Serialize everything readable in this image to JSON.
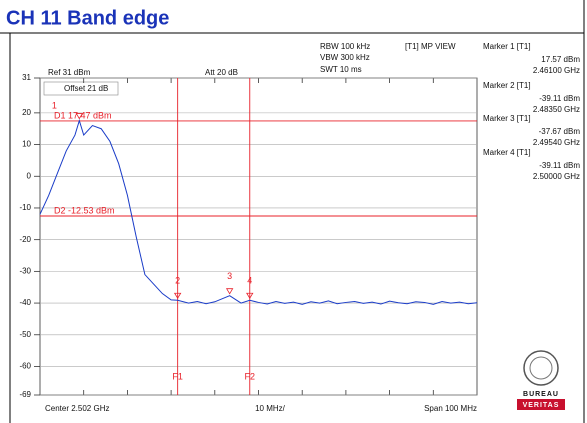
{
  "chart_data": {
    "type": "line",
    "title": "CH 11 Band edge",
    "ref_label": "Ref 31 dBm",
    "att_label": "Att 20 dB",
    "offset_label": "Offset 21 dB",
    "settings": [
      "RBW 100 kHz",
      "VBW 300 kHz",
      "SWT 10 ms"
    ],
    "view_label": "[T1] MP VIEW",
    "x_labels": {
      "center": "Center 2.502 GHz",
      "div": "10 MHz/",
      "span": "Span 100 MHz"
    },
    "xlim": [
      2.452,
      2.552
    ],
    "ylim": [
      -69,
      31
    ],
    "yticks": [
      31,
      20,
      10,
      0,
      -10,
      -20,
      -30,
      -40,
      -50,
      -60,
      -69
    ],
    "grid": true,
    "color": "#1a3cc8",
    "line_color": "#e8212a",
    "x": [
      2.452,
      2.454,
      2.456,
      2.458,
      2.46,
      2.461,
      2.462,
      2.464,
      2.466,
      2.468,
      2.47,
      2.472,
      2.474,
      2.476,
      2.478,
      2.48,
      2.482,
      2.4835,
      2.486,
      2.488,
      2.49,
      2.492,
      2.4954,
      2.498,
      2.5,
      2.502,
      2.504,
      2.506,
      2.508,
      2.51,
      2.512,
      2.514,
      2.516,
      2.518,
      2.52,
      2.522,
      2.524,
      2.526,
      2.528,
      2.53,
      2.532,
      2.534,
      2.536,
      2.538,
      2.54,
      2.542,
      2.544,
      2.546,
      2.548,
      2.55,
      2.552
    ],
    "values": [
      -12,
      -6,
      1,
      8,
      13,
      17.57,
      13,
      16,
      15,
      11,
      4,
      -6,
      -19,
      -31,
      -34,
      -37,
      -39,
      -39.11,
      -40,
      -39.5,
      -40.2,
      -39.6,
      -37.67,
      -40,
      -39.11,
      -39.8,
      -40.3,
      -39.5,
      -40.1,
      -39.7,
      -40.4,
      -39.6,
      -40,
      -39.3,
      -40.2,
      -39.8,
      -39.5,
      -40.1,
      -39.7,
      -40.3,
      -39.4,
      -39.9,
      -40.2,
      -39.6,
      -39.8,
      -40.4,
      -39.5,
      -40,
      -39.7,
      -40.2,
      -39.9
    ],
    "display_lines": [
      {
        "label": "D1 17.47 dBm",
        "value": 17.47
      },
      {
        "label": "D2 -12.53 dBm",
        "value": -12.53
      }
    ],
    "freq_lines": [
      {
        "label": "F1",
        "value": 2.4835
      },
      {
        "label": "F2",
        "value": 2.5
      }
    ],
    "markers": [
      {
        "name": "Marker 1 [T1]",
        "tag": "1",
        "value": 17.57,
        "value_label": "17.57 dBm",
        "x": 2.461,
        "x_label": "2.46100 GHz"
      },
      {
        "name": "Marker 2 [T1]",
        "tag": "2",
        "value": -39.11,
        "value_label": "-39.11 dBm",
        "x": 2.4835,
        "x_label": "2.48350 GHz"
      },
      {
        "name": "Marker 3 [T1]",
        "tag": "3",
        "value": -37.67,
        "value_label": "-37.67 dBm",
        "x": 2.4954,
        "x_label": "2.49540 GHz"
      },
      {
        "name": "Marker 4 [T1]",
        "tag": "4",
        "value": -39.11,
        "value_label": "-39.11 dBm",
        "x": 2.5,
        "x_label": "2.50000 GHz"
      }
    ],
    "logo": [
      "BUREAU",
      "VERITAS"
    ]
  }
}
